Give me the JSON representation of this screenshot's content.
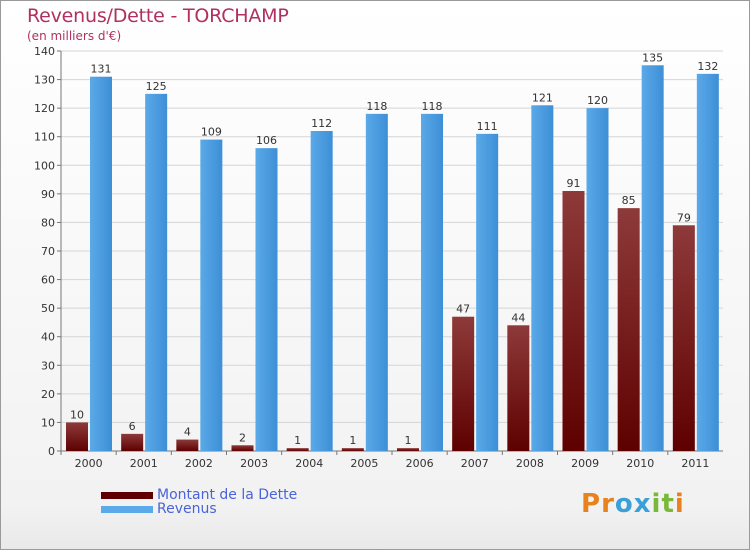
{
  "header": {
    "title": "Revenus/Dette - TORCHAMP",
    "subtitle": "(en milliers d'€)"
  },
  "legend": {
    "debt_label": "Montant de la Dette",
    "revenue_label": "Revenus"
  },
  "logo": {
    "text": "Proxiti",
    "letters": [
      "P",
      "r",
      "o",
      "x",
      "i",
      "t",
      "i"
    ]
  },
  "colors": {
    "debt_top": "#8e3a3a",
    "debt_bottom": "#5e0000",
    "revenue_top": "#5aa9e8",
    "revenue_bottom": "#3d8fd6",
    "grid": "#d5d5d5",
    "text": "#333333",
    "title": "#b03060",
    "legend_text": "#4a63d9",
    "logo_colors": [
      "#e8821e",
      "#e8821e",
      "#3aa0d8",
      "#3aa0d8",
      "#7ab83a",
      "#7ab83a",
      "#e8821e"
    ]
  },
  "chart_data": {
    "type": "bar",
    "categories": [
      "2000",
      "2001",
      "2002",
      "2003",
      "2004",
      "2005",
      "2006",
      "2007",
      "2008",
      "2009",
      "2010",
      "2011"
    ],
    "series": [
      {
        "name": "Montant de la Dette",
        "values": [
          10,
          6,
          4,
          2,
          1,
          1,
          1,
          47,
          44,
          91,
          85,
          79
        ]
      },
      {
        "name": "Revenus",
        "values": [
          131,
          125,
          109,
          106,
          112,
          118,
          118,
          111,
          121,
          120,
          135,
          132
        ]
      }
    ],
    "ylim": [
      0,
      140
    ],
    "yticks": [
      0,
      10,
      20,
      30,
      40,
      50,
      60,
      70,
      80,
      90,
      100,
      110,
      120,
      130,
      140
    ],
    "grid": true,
    "legend": "bottom-left"
  }
}
